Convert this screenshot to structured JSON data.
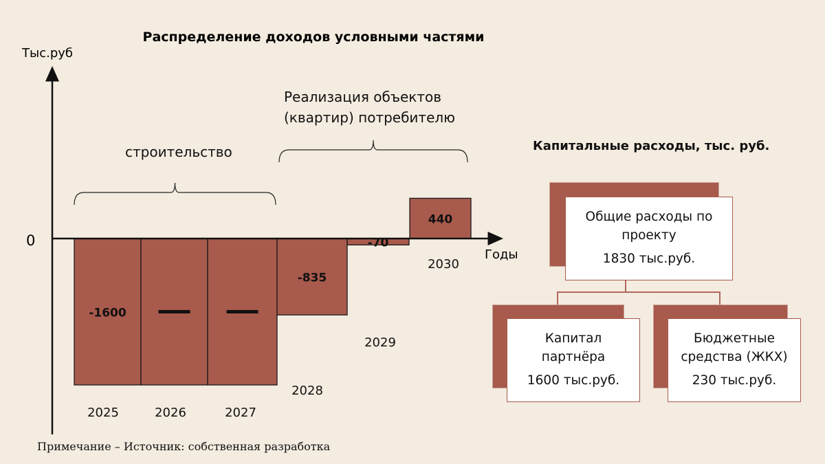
{
  "chart_data": {
    "type": "bar",
    "title": "Распределение доходов условными частями",
    "ylabel": "Тыс.руб",
    "xlabel": "Годы",
    "zero_label": "0",
    "categories": [
      "2025",
      "2026",
      "2027",
      "2028",
      "2029",
      "2030"
    ],
    "values": [
      -1600,
      -1600,
      -1600,
      -835,
      -70,
      440
    ],
    "data_labels": [
      "-1600",
      "",
      "",
      "-835",
      "-70",
      "440"
    ],
    "repeat_marks": [
      false,
      true,
      true,
      false,
      false,
      false
    ],
    "bar_color": "#a85a4c",
    "grid": false,
    "brackets": [
      {
        "label_lines": [
          "строительство"
        ],
        "from": "2025",
        "to": "2027"
      },
      {
        "label_lines": [
          "Реализация объектов",
          "(квартир) потребителю"
        ],
        "from": "2028",
        "to": "2030"
      }
    ]
  },
  "capex": {
    "title": "Капитальные расходы, тыс. руб.",
    "total": {
      "line1": "Общие расходы по",
      "line2": "проекту",
      "amount": "1830 тыс.руб."
    },
    "partner": {
      "line1": "Капитал",
      "line2": "партнёра",
      "amount": "1600 тыс.руб."
    },
    "budget": {
      "line1": "Бюджетные",
      "line2": "средства (ЖКХ)",
      "amount": "230 тыс.руб."
    },
    "accent_color": "#a85a4c"
  },
  "note": "Примечание – Источник: собственная разработка"
}
